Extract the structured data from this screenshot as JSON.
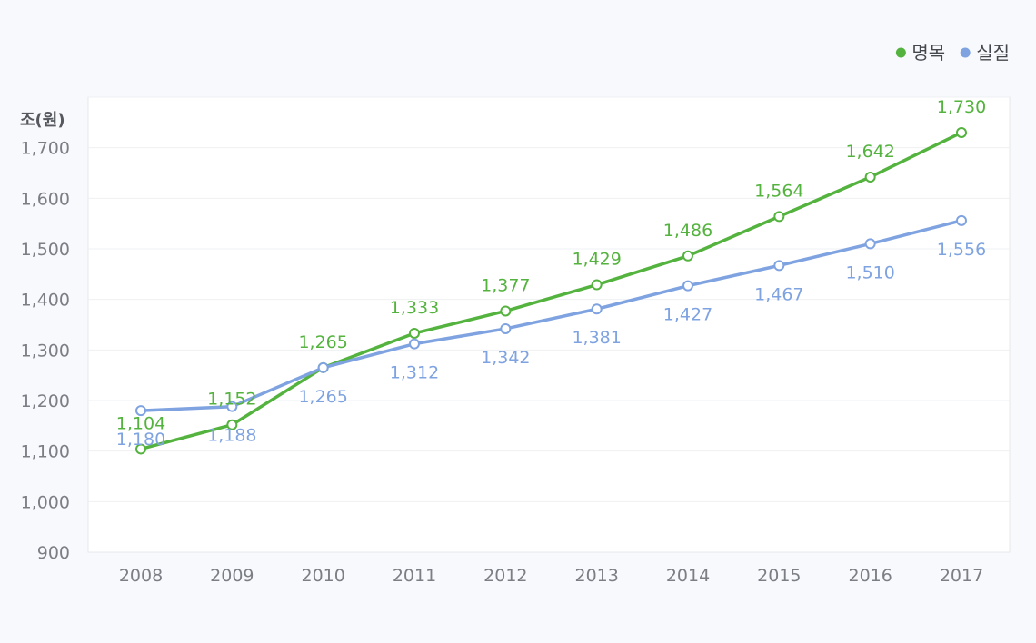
{
  "chart_data": {
    "type": "line",
    "ylabel": "조(원)",
    "ylim": [
      900,
      1800
    ],
    "yticks": [
      900,
      1000,
      1100,
      1200,
      1300,
      1400,
      1500,
      1600,
      1700
    ],
    "ytick_labels": [
      "900",
      "1,000",
      "1,100",
      "1,200",
      "1,300",
      "1,400",
      "1,500",
      "1,600",
      "1,700"
    ],
    "categories": [
      "2008",
      "2009",
      "2010",
      "2011",
      "2012",
      "2013",
      "2014",
      "2015",
      "2016",
      "2017"
    ],
    "legend_position": "top-right",
    "grid": true,
    "series": [
      {
        "name": "명목",
        "color": "#54b33e",
        "values": [
          1104,
          1152,
          1265,
          1333,
          1377,
          1429,
          1486,
          1564,
          1642,
          1730
        ],
        "labels": [
          "1,104",
          "1,152",
          "1,265",
          "1,333",
          "1,377",
          "1,429",
          "1,486",
          "1,564",
          "1,642",
          "1,730"
        ],
        "label_side": "above"
      },
      {
        "name": "실질",
        "color": "#7fa3e0",
        "values": [
          1180,
          1188,
          1265,
          1312,
          1342,
          1381,
          1427,
          1467,
          1510,
          1556
        ],
        "labels": [
          "1,180",
          "1,188",
          "1,265",
          "1,312",
          "1,342",
          "1,381",
          "1,427",
          "1,467",
          "1,510",
          "1,556"
        ],
        "label_side": "below"
      }
    ]
  }
}
